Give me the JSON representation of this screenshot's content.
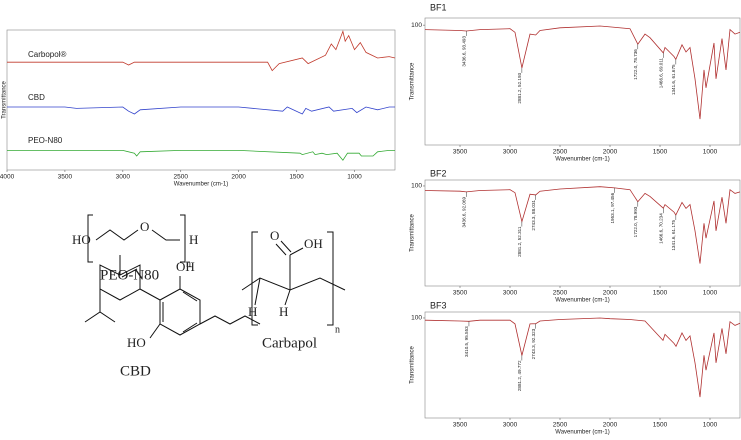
{
  "chart_data": [
    {
      "type": "line",
      "x_label": "Wavenumber (cm-1)",
      "y_label": "Transmittance",
      "xlim": [
        4000,
        650
      ],
      "xticks": [
        4000,
        3500,
        3000,
        2500,
        2000,
        1500,
        1000
      ],
      "ylim": [
        0,
        100
      ],
      "series": [
        {
          "name": "Carbopol®",
          "color": "#c0392b",
          "x": [
            4000,
            3500,
            3000,
            2950,
            2900,
            2500,
            2000,
            1750,
            1710,
            1650,
            1450,
            1400,
            1250,
            1200,
            1160,
            1100,
            1080,
            1050,
            1000,
            950,
            900,
            800,
            700,
            650
          ],
          "values": [
            77,
            77,
            77,
            75,
            77,
            77,
            77,
            77,
            71,
            76,
            80,
            76,
            82,
            90,
            86,
            99,
            92,
            96,
            86,
            91,
            84,
            80,
            81,
            80
          ]
        },
        {
          "name": "CBD",
          "color": "#3344cc",
          "x": [
            4000,
            3500,
            3400,
            3000,
            2950,
            2900,
            2850,
            2500,
            2000,
            1620,
            1580,
            1450,
            1420,
            1370,
            1220,
            1180,
            1020,
            980,
            900,
            800,
            700,
            650
          ],
          "values": [
            45,
            45,
            44,
            45,
            42,
            40,
            43,
            45,
            45,
            42,
            45,
            40,
            44,
            42,
            45,
            42,
            44,
            41,
            45,
            43,
            45,
            45
          ]
        },
        {
          "name": "PEO-N80",
          "color": "#33aa33",
          "x": [
            4000,
            3500,
            3000,
            2900,
            2880,
            2850,
            2500,
            2000,
            1470,
            1450,
            1360,
            1340,
            1280,
            1240,
            1150,
            1100,
            1060,
            960,
            940,
            840,
            800,
            700,
            650
          ],
          "values": [
            14,
            14,
            14,
            12,
            10,
            13,
            14,
            14,
            12,
            11,
            13,
            11,
            12,
            11,
            12,
            7,
            12,
            12,
            10,
            10,
            13,
            14,
            14
          ]
        }
      ]
    },
    {
      "type": "line",
      "title": "BF1",
      "x_label": "Wavenumber (cm-1)",
      "y_label": "Transmittance",
      "xlim": [
        3850,
        700
      ],
      "xticks": [
        3500,
        3000,
        2500,
        2000,
        1500,
        1000
      ],
      "ylim": [
        -34,
        108
      ],
      "yticks": [
        100
      ],
      "series": [
        {
          "name": "BF1",
          "color": "#b03030",
          "x": [
            3850,
            3500,
            3436.6,
            3300,
            3000,
            2950,
            2881.2,
            2800,
            2743,
            2700,
            2500,
            2100,
            2000,
            1800,
            1722,
            1650,
            1600,
            1466.6,
            1450,
            1360,
            1341.6,
            1280,
            1240,
            1200,
            1150,
            1100,
            1060,
            1040,
            960,
            940,
            880,
            840,
            800,
            750,
            700
          ],
          "values": [
            95,
            94,
            93.493,
            95,
            96,
            92,
            52.193,
            90,
            89,
            94,
            97,
            99,
            98,
            96,
            78.736,
            90,
            86,
            69.011,
            75,
            65,
            61.675,
            78,
            70,
            75,
            40,
            -5,
            50,
            30,
            80,
            40,
            85,
            50,
            95,
            90,
            92
          ]
        }
      ],
      "annotations": [
        {
          "x": 3436.6,
          "y": 93.493,
          "label": "3436.6, 93.493"
        },
        {
          "x": 2881.2,
          "y": 52.193,
          "label": "2881.2, 52.193"
        },
        {
          "x": 1722.0,
          "y": 78.736,
          "label": "1722.0, 78.736"
        },
        {
          "x": 1466.6,
          "y": 69.011,
          "label": "1466.6, 69.011"
        },
        {
          "x": 1341.6,
          "y": 61.675,
          "label": "1341.6, 61.675"
        }
      ]
    },
    {
      "type": "line",
      "title": "BF2",
      "x_label": "Wavenumber (cm-1)",
      "y_label": "Transmittance",
      "xlim": [
        3850,
        700
      ],
      "xticks": [
        3500,
        3000,
        2500,
        2000,
        1500,
        1000
      ],
      "ylim": [
        -34,
        108
      ],
      "yticks": [
        100
      ],
      "series": [
        {
          "name": "BF2",
          "color": "#b03030",
          "x": [
            3850,
            3500,
            3436.6,
            3300,
            3000,
            2950,
            2881.2,
            2800,
            2743.3,
            2700,
            2500,
            2100,
            1953.1,
            1800,
            1722,
            1650,
            1600,
            1466.6,
            1450,
            1360,
            1341.6,
            1280,
            1240,
            1200,
            1150,
            1100,
            1060,
            1040,
            960,
            940,
            880,
            840,
            800,
            750,
            700
          ],
          "values": [
            94,
            93,
            92.069,
            94,
            95,
            91,
            52.311,
            89,
            88.031,
            93,
            96,
            99,
            97.456,
            95,
            78.993,
            90,
            86,
            70.234,
            75,
            65,
            61.175,
            78,
            70,
            75,
            40,
            -4,
            50,
            30,
            80,
            40,
            85,
            50,
            95,
            90,
            92
          ]
        }
      ],
      "annotations": [
        {
          "x": 3436.6,
          "y": 92.069,
          "label": "3436.6, 92.069"
        },
        {
          "x": 2881.2,
          "y": 52.311,
          "label": "2881.2, 52.311"
        },
        {
          "x": 2743.3,
          "y": 88.031,
          "label": "2743.3, 88.031"
        },
        {
          "x": 1953.1,
          "y": 97.456,
          "label": "1953.1, 97.456"
        },
        {
          "x": 1722.0,
          "y": 78.993,
          "label": "1722.0, 78.993"
        },
        {
          "x": 1466.6,
          "y": 70.234,
          "label": "1466.6, 70.234"
        },
        {
          "x": 1341.6,
          "y": 61.175,
          "label": "1341.6, 61.175"
        }
      ]
    },
    {
      "type": "line",
      "title": "BF3",
      "x_label": "Wavenumber (cm-1)",
      "y_label": "Transmittance",
      "xlim": [
        3850,
        700
      ],
      "xticks": [
        3500,
        3000,
        2500,
        2000,
        1500,
        1000
      ],
      "ylim": [
        -34,
        108
      ],
      "yticks": [
        100
      ],
      "series": [
        {
          "name": "BF3",
          "color": "#b03030",
          "x": [
            3850,
            3500,
            3410.5,
            3300,
            3000,
            2950,
            2881.2,
            2800,
            2743.3,
            2700,
            2500,
            2100,
            2000,
            1800,
            1650,
            1470,
            1450,
            1360,
            1340,
            1280,
            1240,
            1200,
            1150,
            1100,
            1060,
            1040,
            960,
            940,
            880,
            840,
            800,
            750,
            700
          ],
          "values": [
            97,
            96,
            95.553,
            97,
            97,
            92,
            49.772,
            92,
            92.323,
            96,
            98,
            100,
            99,
            98,
            96,
            70,
            78,
            66,
            62,
            80,
            70,
            76,
            40,
            -6,
            50,
            30,
            80,
            40,
            86,
            52,
            95,
            90,
            93
          ]
        }
      ],
      "annotations": [
        {
          "x": 3410.5,
          "y": 95.553,
          "label": "3410.5, 95.553"
        },
        {
          "x": 2881.2,
          "y": 49.772,
          "label": "2881.2, 49.772"
        },
        {
          "x": 2743.3,
          "y": 92.323,
          "label": "2743.3, 92.323"
        }
      ]
    }
  ],
  "structures": {
    "peo": {
      "atoms": [
        "HO",
        "O",
        "H",
        "n"
      ],
      "name": "PEO-N80"
    },
    "carbapol": {
      "atoms": [
        "O",
        "OH",
        "H",
        "H",
        "n"
      ],
      "name": "Carbapol"
    },
    "cbd": {
      "atoms": [
        "OH",
        "HO"
      ],
      "name": "CBD"
    }
  }
}
